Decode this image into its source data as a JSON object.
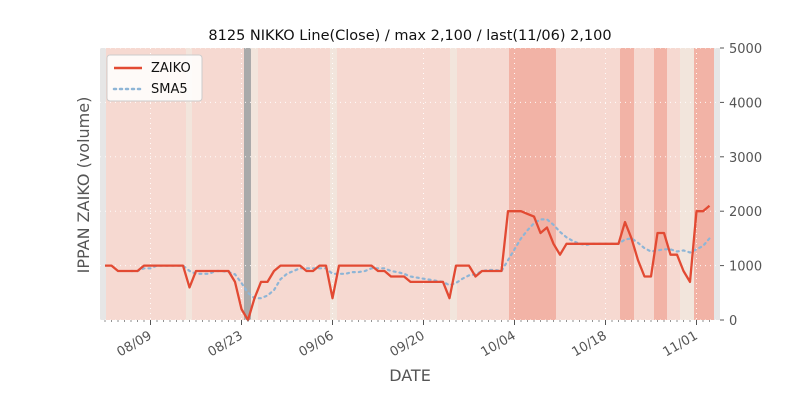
{
  "chart_data": {
    "type": "line",
    "title": "8125 NIKKO Line(Close) / max 2,100 / last(11/06) 2,100",
    "xlabel": "DATE",
    "ylabel": "IPPAN ZAIKO (volume)",
    "ylim": [
      0,
      5000
    ],
    "y_ticks": [
      0,
      1000,
      2000,
      3000,
      4000,
      5000
    ],
    "y_axis_side": "right",
    "grid": true,
    "legend_position": "top-left",
    "x_ticks": [
      {
        "day": 7,
        "label": "08/09"
      },
      {
        "day": 21,
        "label": "08/23"
      },
      {
        "day": 35,
        "label": "09/06"
      },
      {
        "day": 49,
        "label": "09/20"
      },
      {
        "day": 63,
        "label": "10/04"
      },
      {
        "day": 77,
        "label": "10/18"
      },
      {
        "day": 91,
        "label": "11/01"
      }
    ],
    "series": [
      {
        "name": "ZAIKO",
        "color": "#e24a33",
        "style": "solid",
        "points": [
          [
            0,
            1000
          ],
          [
            1,
            1000
          ],
          [
            2,
            900
          ],
          [
            3,
            900
          ],
          [
            4,
            900
          ],
          [
            5,
            900
          ],
          [
            6,
            1000
          ],
          [
            7,
            1000
          ],
          [
            8,
            1000
          ],
          [
            9,
            1000
          ],
          [
            10,
            1000
          ],
          [
            11,
            1000
          ],
          [
            12,
            1000
          ],
          [
            13,
            600
          ],
          [
            14,
            900
          ],
          [
            15,
            900
          ],
          [
            16,
            900
          ],
          [
            17,
            900
          ],
          [
            18,
            900
          ],
          [
            19,
            900
          ],
          [
            20,
            700
          ],
          [
            21,
            200
          ],
          [
            22,
            0
          ],
          [
            23,
            400
          ],
          [
            24,
            700
          ],
          [
            25,
            700
          ],
          [
            26,
            900
          ],
          [
            27,
            1000
          ],
          [
            28,
            1000
          ],
          [
            29,
            1000
          ],
          [
            30,
            1000
          ],
          [
            31,
            900
          ],
          [
            32,
            900
          ],
          [
            33,
            1000
          ],
          [
            34,
            1000
          ],
          [
            35,
            400
          ],
          [
            36,
            1000
          ],
          [
            37,
            1000
          ],
          [
            38,
            1000
          ],
          [
            39,
            1000
          ],
          [
            40,
            1000
          ],
          [
            41,
            1000
          ],
          [
            42,
            900
          ],
          [
            43,
            900
          ],
          [
            44,
            800
          ],
          [
            45,
            800
          ],
          [
            46,
            800
          ],
          [
            47,
            700
          ],
          [
            48,
            700
          ],
          [
            49,
            700
          ],
          [
            50,
            700
          ],
          [
            51,
            700
          ],
          [
            52,
            700
          ],
          [
            53,
            400
          ],
          [
            54,
            1000
          ],
          [
            55,
            1000
          ],
          [
            56,
            1000
          ],
          [
            57,
            800
          ],
          [
            58,
            900
          ],
          [
            59,
            900
          ],
          [
            60,
            900
          ],
          [
            61,
            900
          ],
          [
            62,
            2000
          ],
          [
            63,
            2000
          ],
          [
            64,
            2000
          ],
          [
            65,
            1950
          ],
          [
            66,
            1900
          ],
          [
            67,
            1600
          ],
          [
            68,
            1700
          ],
          [
            69,
            1400
          ],
          [
            70,
            1200
          ],
          [
            71,
            1400
          ],
          [
            72,
            1400
          ],
          [
            73,
            1400
          ],
          [
            74,
            1400
          ],
          [
            75,
            1400
          ],
          [
            76,
            1400
          ],
          [
            77,
            1400
          ],
          [
            78,
            1400
          ],
          [
            79,
            1400
          ],
          [
            80,
            1800
          ],
          [
            81,
            1500
          ],
          [
            82,
            1100
          ],
          [
            83,
            800
          ],
          [
            84,
            800
          ],
          [
            85,
            1600
          ],
          [
            86,
            1600
          ],
          [
            87,
            1200
          ],
          [
            88,
            1200
          ],
          [
            89,
            900
          ],
          [
            90,
            700
          ],
          [
            91,
            2000
          ],
          [
            92,
            2000
          ],
          [
            93,
            2100
          ]
        ]
      },
      {
        "name": "SMA5",
        "color": "#8eb5d6",
        "style": "dotted",
        "points": [
          [
            4,
            900
          ],
          [
            5,
            900
          ],
          [
            6,
            950
          ],
          [
            7,
            950
          ],
          [
            8,
            1000
          ],
          [
            9,
            1000
          ],
          [
            10,
            1000
          ],
          [
            11,
            1000
          ],
          [
            12,
            1000
          ],
          [
            13,
            900
          ],
          [
            14,
            850
          ],
          [
            15,
            850
          ],
          [
            16,
            850
          ],
          [
            17,
            900
          ],
          [
            18,
            900
          ],
          [
            19,
            880
          ],
          [
            20,
            840
          ],
          [
            21,
            680
          ],
          [
            22,
            500
          ],
          [
            23,
            400
          ],
          [
            24,
            400
          ],
          [
            25,
            450
          ],
          [
            26,
            550
          ],
          [
            27,
            750
          ],
          [
            28,
            850
          ],
          [
            29,
            900
          ],
          [
            30,
            950
          ],
          [
            31,
            950
          ],
          [
            32,
            950
          ],
          [
            33,
            950
          ],
          [
            34,
            950
          ],
          [
            35,
            850
          ],
          [
            36,
            850
          ],
          [
            37,
            850
          ],
          [
            38,
            880
          ],
          [
            39,
            880
          ],
          [
            40,
            900
          ],
          [
            41,
            950
          ],
          [
            42,
            950
          ],
          [
            43,
            950
          ],
          [
            44,
            900
          ],
          [
            45,
            880
          ],
          [
            46,
            850
          ],
          [
            47,
            800
          ],
          [
            48,
            780
          ],
          [
            49,
            760
          ],
          [
            50,
            740
          ],
          [
            51,
            720
          ],
          [
            52,
            700
          ],
          [
            53,
            640
          ],
          [
            54,
            680
          ],
          [
            55,
            760
          ],
          [
            56,
            820
          ],
          [
            57,
            840
          ],
          [
            58,
            900
          ],
          [
            59,
            920
          ],
          [
            60,
            920
          ],
          [
            61,
            900
          ],
          [
            62,
            1100
          ],
          [
            63,
            1300
          ],
          [
            64,
            1500
          ],
          [
            65,
            1650
          ],
          [
            66,
            1780
          ],
          [
            67,
            1850
          ],
          [
            68,
            1850
          ],
          [
            69,
            1750
          ],
          [
            70,
            1620
          ],
          [
            71,
            1520
          ],
          [
            72,
            1450
          ],
          [
            73,
            1400
          ],
          [
            74,
            1380
          ],
          [
            75,
            1400
          ],
          [
            76,
            1400
          ],
          [
            77,
            1400
          ],
          [
            78,
            1400
          ],
          [
            79,
            1400
          ],
          [
            80,
            1480
          ],
          [
            81,
            1500
          ],
          [
            82,
            1420
          ],
          [
            83,
            1320
          ],
          [
            84,
            1260
          ],
          [
            85,
            1280
          ],
          [
            86,
            1300
          ],
          [
            87,
            1300
          ],
          [
            88,
            1260
          ],
          [
            89,
            1280
          ],
          [
            90,
            1240
          ],
          [
            91,
            1300
          ],
          [
            92,
            1360
          ],
          [
            93,
            1500
          ]
        ]
      }
    ]
  }
}
